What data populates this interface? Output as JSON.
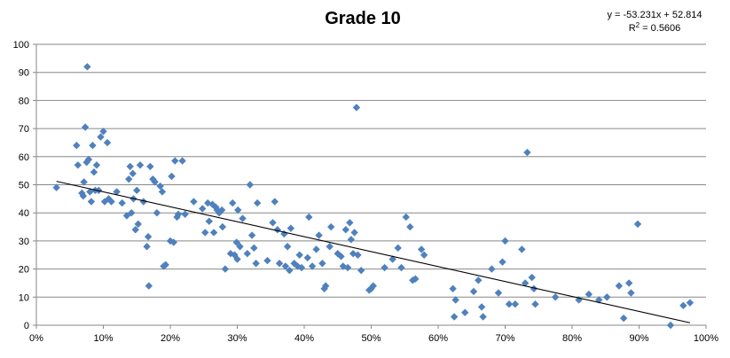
{
  "chart_data": {
    "type": "scatter",
    "title": "Grade 10",
    "trendline": {
      "slope": -53.231,
      "intercept": 52.814,
      "equation_label": "y = -53.231x + 52.814",
      "r2_prefix": "R",
      "r2_sup": "2",
      "r2_suffix": " = 0.5606"
    },
    "xlim": [
      0,
      1
    ],
    "ylim": [
      0,
      100
    ],
    "x_ticks": [
      "0%",
      "10%",
      "20%",
      "30%",
      "40%",
      "50%",
      "60%",
      "70%",
      "80%",
      "90%",
      "100%"
    ],
    "y_ticks": [
      "0",
      "10",
      "20",
      "30",
      "40",
      "50",
      "60",
      "70",
      "80",
      "90",
      "100"
    ],
    "grid": "horizontal",
    "marker_color": "#4F81BD",
    "trendline_color": "#000000",
    "points": [
      [
        0.03,
        49
      ],
      [
        0.06,
        64
      ],
      [
        0.062,
        57
      ],
      [
        0.068,
        47
      ],
      [
        0.07,
        46
      ],
      [
        0.071,
        51
      ],
      [
        0.073,
        70.5
      ],
      [
        0.075,
        58
      ],
      [
        0.076,
        92
      ],
      [
        0.078,
        59
      ],
      [
        0.08,
        47.5
      ],
      [
        0.082,
        44
      ],
      [
        0.084,
        64
      ],
      [
        0.086,
        54.5
      ],
      [
        0.088,
        48
      ],
      [
        0.09,
        57
      ],
      [
        0.093,
        48
      ],
      [
        0.096,
        67
      ],
      [
        0.1,
        69
      ],
      [
        0.102,
        44
      ],
      [
        0.106,
        65
      ],
      [
        0.108,
        45
      ],
      [
        0.112,
        44
      ],
      [
        0.12,
        47.5
      ],
      [
        0.128,
        43.5
      ],
      [
        0.135,
        39
      ],
      [
        0.138,
        52
      ],
      [
        0.14,
        56.5
      ],
      [
        0.142,
        40
      ],
      [
        0.144,
        54
      ],
      [
        0.145,
        45
      ],
      [
        0.148,
        34
      ],
      [
        0.15,
        48
      ],
      [
        0.152,
        36
      ],
      [
        0.155,
        57
      ],
      [
        0.16,
        44
      ],
      [
        0.165,
        28
      ],
      [
        0.167,
        31.5
      ],
      [
        0.168,
        14
      ],
      [
        0.17,
        56.5
      ],
      [
        0.174,
        52
      ],
      [
        0.177,
        51
      ],
      [
        0.18,
        40
      ],
      [
        0.185,
        49.5
      ],
      [
        0.188,
        47.5
      ],
      [
        0.19,
        21
      ],
      [
        0.193,
        21.5
      ],
      [
        0.2,
        30
      ],
      [
        0.202,
        53
      ],
      [
        0.205,
        29.5
      ],
      [
        0.207,
        58.5
      ],
      [
        0.21,
        38.5
      ],
      [
        0.212,
        39.5
      ],
      [
        0.218,
        58.5
      ],
      [
        0.222,
        39.5
      ],
      [
        0.235,
        44
      ],
      [
        0.248,
        41.5
      ],
      [
        0.252,
        33
      ],
      [
        0.256,
        43.5
      ],
      [
        0.258,
        37
      ],
      [
        0.263,
        43
      ],
      [
        0.265,
        33
      ],
      [
        0.268,
        42
      ],
      [
        0.27,
        41
      ],
      [
        0.273,
        40
      ],
      [
        0.277,
        41
      ],
      [
        0.278,
        35
      ],
      [
        0.282,
        20
      ],
      [
        0.29,
        25.5
      ],
      [
        0.293,
        43.5
      ],
      [
        0.296,
        25
      ],
      [
        0.299,
        29.5
      ],
      [
        0.3,
        23.5
      ],
      [
        0.301,
        41
      ],
      [
        0.304,
        28
      ],
      [
        0.308,
        38
      ],
      [
        0.315,
        25.5
      ],
      [
        0.319,
        50
      ],
      [
        0.322,
        32
      ],
      [
        0.325,
        27.5
      ],
      [
        0.328,
        22
      ],
      [
        0.33,
        43.5
      ],
      [
        0.345,
        23
      ],
      [
        0.353,
        36.5
      ],
      [
        0.356,
        44
      ],
      [
        0.36,
        34
      ],
      [
        0.363,
        22
      ],
      [
        0.37,
        32.5
      ],
      [
        0.372,
        21
      ],
      [
        0.375,
        28
      ],
      [
        0.378,
        19.5
      ],
      [
        0.38,
        34.5
      ],
      [
        0.385,
        22
      ],
      [
        0.39,
        21
      ],
      [
        0.393,
        25
      ],
      [
        0.396,
        20.5
      ],
      [
        0.405,
        24
      ],
      [
        0.407,
        38.5
      ],
      [
        0.412,
        21
      ],
      [
        0.418,
        27
      ],
      [
        0.422,
        32
      ],
      [
        0.427,
        22
      ],
      [
        0.43,
        13
      ],
      [
        0.432,
        14
      ],
      [
        0.438,
        28
      ],
      [
        0.44,
        35
      ],
      [
        0.45,
        25.5
      ],
      [
        0.455,
        24.5
      ],
      [
        0.458,
        21
      ],
      [
        0.462,
        34
      ],
      [
        0.465,
        20.5
      ],
      [
        0.468,
        36.5
      ],
      [
        0.47,
        30.5
      ],
      [
        0.473,
        25.5
      ],
      [
        0.475,
        33
      ],
      [
        0.478,
        77.5
      ],
      [
        0.48,
        25
      ],
      [
        0.485,
        19.5
      ],
      [
        0.497,
        12.5
      ],
      [
        0.5,
        13
      ],
      [
        0.503,
        14
      ],
      [
        0.52,
        20.5
      ],
      [
        0.532,
        23.5
      ],
      [
        0.54,
        27.5
      ],
      [
        0.545,
        20.5
      ],
      [
        0.552,
        38.5
      ],
      [
        0.558,
        35
      ],
      [
        0.562,
        16
      ],
      [
        0.566,
        16.5
      ],
      [
        0.575,
        27
      ],
      [
        0.579,
        25
      ],
      [
        0.622,
        13
      ],
      [
        0.624,
        3
      ],
      [
        0.626,
        9
      ],
      [
        0.64,
        4.5
      ],
      [
        0.653,
        12
      ],
      [
        0.66,
        16
      ],
      [
        0.665,
        6.5
      ],
      [
        0.667,
        3
      ],
      [
        0.68,
        20
      ],
      [
        0.69,
        11.5
      ],
      [
        0.696,
        22.5
      ],
      [
        0.7,
        30
      ],
      [
        0.706,
        7.5
      ],
      [
        0.715,
        7.5
      ],
      [
        0.725,
        27
      ],
      [
        0.73,
        15
      ],
      [
        0.733,
        61.5
      ],
      [
        0.74,
        17
      ],
      [
        0.743,
        13
      ],
      [
        0.745,
        7.5
      ],
      [
        0.775,
        10
      ],
      [
        0.81,
        9
      ],
      [
        0.825,
        11
      ],
      [
        0.84,
        9
      ],
      [
        0.852,
        10
      ],
      [
        0.87,
        14
      ],
      [
        0.877,
        2.5
      ],
      [
        0.885,
        15
      ],
      [
        0.888,
        11.5
      ],
      [
        0.898,
        36
      ],
      [
        0.947,
        0
      ],
      [
        0.966,
        7
      ],
      [
        0.976,
        8
      ]
    ]
  }
}
